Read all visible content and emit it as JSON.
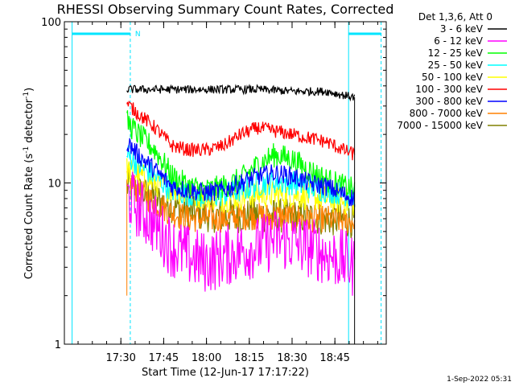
{
  "chart_data": {
    "type": "line",
    "title": "RHESSI Observing Summary Count Rates, Corrected",
    "xlabel": "Start Time (12-Jun-17 17:17:22)",
    "ylabel": "Corrected Count Rate (s",
    "ylabel_sup1": "-1",
    "ylabel_mid": " detector",
    "ylabel_sup2": "-1",
    "ylabel_end": ")",
    "y_scale": "log",
    "ylim": [
      1,
      100
    ],
    "xlim": [
      17.17,
      19.05
    ],
    "x_tick_hours": [
      17.5,
      17.75,
      18.0,
      18.25,
      18.5,
      18.75
    ],
    "x_tick_labels": [
      "17:30",
      "17:45",
      "18:00",
      "18:15",
      "18:30",
      "18:45"
    ],
    "y_tick_values": [
      1,
      10,
      100
    ],
    "y_tick_labels": [
      "1",
      "10",
      "100"
    ],
    "legend_title": "Det 1,3,6, Att 0",
    "legend_position": "top-right outside",
    "footer": "1-Sep-2022 05:31",
    "data_start_hour": 17.535,
    "data_end_hour": 18.865,
    "night_marker": "N",
    "night_intervals": [
      [
        17.215,
        17.555
      ],
      [
        18.83,
        19.02
      ]
    ],
    "saa_lines_solid": [
      17.215,
      18.83
    ],
    "saa_lines_dashed": [
      17.555,
      19.02
    ],
    "series": [
      {
        "name": "3 - 6 keV",
        "color": "#000000",
        "x": [
          17.535,
          17.7,
          17.9,
          18.1,
          18.3,
          18.5,
          18.7,
          18.8,
          18.865
        ],
        "y": [
          38,
          38,
          38,
          38,
          38,
          37,
          37,
          35,
          34
        ]
      },
      {
        "name": "6 - 12 keV",
        "color": "#ff00ff",
        "x": [
          17.535,
          17.6,
          17.7,
          17.8,
          17.9,
          18.0,
          18.1,
          18.2,
          18.3,
          18.4,
          18.5,
          18.6,
          18.7,
          18.8,
          18.865
        ],
        "y": [
          8.5,
          7.0,
          5.5,
          4.0,
          3.5,
          3.2,
          3.5,
          3.8,
          4.0,
          4.5,
          4.3,
          4.0,
          3.6,
          3.3,
          3.0
        ]
      },
      {
        "name": "12 - 25 keV",
        "color": "#00ff00",
        "x": [
          17.535,
          17.6,
          17.7,
          17.8,
          17.9,
          18.0,
          18.1,
          18.2,
          18.3,
          18.4,
          18.5,
          18.6,
          18.7,
          18.8,
          18.865
        ],
        "y": [
          24,
          20,
          16,
          11,
          9.5,
          9.0,
          9.5,
          10.5,
          13,
          15,
          14,
          12,
          10.5,
          9.5,
          9.0
        ]
      },
      {
        "name": "25 - 50 keV",
        "color": "#00ffff",
        "x": [
          17.535,
          17.6,
          17.7,
          17.8,
          17.9,
          18.0,
          18.1,
          18.2,
          18.3,
          18.4,
          18.5,
          18.6,
          18.7,
          18.8,
          18.865
        ],
        "y": [
          15,
          13,
          11,
          9.0,
          8.5,
          8.2,
          8.5,
          9.0,
          9.8,
          10.2,
          10.0,
          9.5,
          9.0,
          8.6,
          8.3
        ]
      },
      {
        "name": "50 - 100 keV",
        "color": "#ffff00",
        "x": [
          17.535,
          17.7,
          17.9,
          18.1,
          18.3,
          18.5,
          18.7,
          18.865
        ],
        "y": [
          12,
          10,
          8.5,
          8.0,
          8.5,
          8.5,
          8.0,
          7.5
        ]
      },
      {
        "name": "100 - 300 keV",
        "color": "#ff0000",
        "x": [
          17.535,
          17.6,
          17.7,
          17.8,
          17.9,
          18.0,
          18.1,
          18.2,
          18.3,
          18.4,
          18.5,
          18.6,
          18.7,
          18.8,
          18.865
        ],
        "y": [
          31,
          27,
          22,
          17,
          16,
          16,
          17,
          20,
          22,
          21,
          20,
          19,
          18,
          16,
          15
        ]
      },
      {
        "name": "300 - 800 keV",
        "color": "#0000ff",
        "x": [
          17.535,
          17.6,
          17.7,
          17.8,
          17.9,
          18.0,
          18.1,
          18.2,
          18.3,
          18.4,
          18.5,
          18.6,
          18.7,
          18.8,
          18.865
        ],
        "y": [
          18,
          15,
          12,
          9.5,
          9.0,
          8.7,
          9.0,
          10,
          11,
          11.5,
          11,
          10,
          9.5,
          8.5,
          8.0
        ]
      },
      {
        "name": "800 - 7000 keV",
        "color": "#ff8000",
        "x": [
          17.535,
          17.6,
          17.7,
          17.8,
          17.9,
          18.0,
          18.1,
          18.2,
          18.3,
          18.4,
          18.5,
          18.6,
          18.7,
          18.8,
          18.865
        ],
        "y": [
          10.5,
          9.0,
          7.5,
          6.5,
          6.0,
          6.0,
          6.0,
          6.2,
          6.2,
          6.2,
          6.1,
          6.0,
          6.0,
          5.8,
          5.8
        ]
      },
      {
        "name": "7000 - 15000 keV",
        "color": "#808000",
        "x": [
          17.535,
          17.7,
          17.9,
          18.1,
          18.3,
          18.5,
          18.7,
          18.865
        ],
        "y": [
          9.5,
          8.0,
          6.5,
          6.2,
          6.3,
          6.2,
          6.0,
          5.8
        ]
      }
    ]
  }
}
